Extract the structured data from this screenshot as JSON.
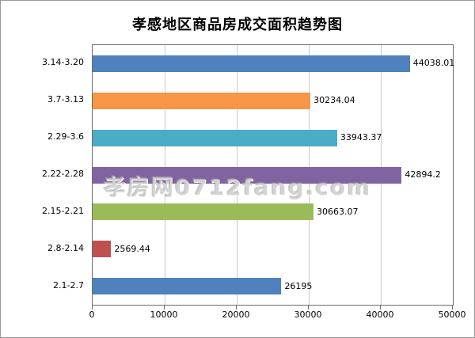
{
  "title": "孝感地区商品房成交面积趋势图",
  "watermark": "孝房网0712fang.com",
  "chart_data": {
    "type": "bar",
    "orientation": "horizontal",
    "title": "孝感地区商品房成交面积趋势图",
    "categories": [
      "3.14-3.20",
      "3.7-3.13",
      "2.29-3.6",
      "2.22-2.28",
      "2.15-2.21",
      "2.8-2.14",
      "2.1-2.7"
    ],
    "values": [
      44038.01,
      30234.04,
      33943.37,
      42894.2,
      30663.07,
      2569.44,
      26195
    ],
    "value_labels": [
      "44038.01",
      "30234.04",
      "33943.37",
      "42894.2",
      "30663.07",
      "2569.44",
      "26195"
    ],
    "bar_colors": [
      "#4F81BD",
      "#F79646",
      "#4BACC6",
      "#8064A2",
      "#9BBB59",
      "#C0504D",
      "#4F81BD"
    ],
    "xlabel": "",
    "ylabel": "",
    "xlim": [
      0,
      50000
    ],
    "x_ticks": [
      "0",
      "10000",
      "20000",
      "30000",
      "40000",
      "50000"
    ],
    "grid": true,
    "legend": "none"
  }
}
